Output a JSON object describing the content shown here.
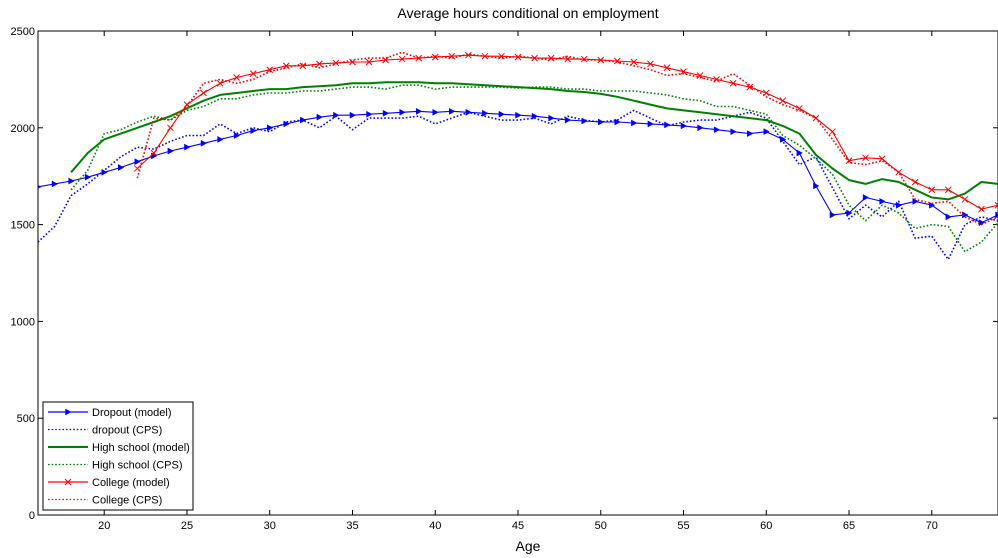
{
  "chart_data": {
    "type": "line",
    "title": "Average hours conditional on employment",
    "xlabel": "Age",
    "ylabel": "",
    "xlim": [
      16,
      74
    ],
    "ylim": [
      0,
      2500
    ],
    "xticks": [
      20,
      25,
      30,
      35,
      40,
      45,
      50,
      55,
      60,
      65,
      70
    ],
    "yticks": [
      0,
      500,
      1000,
      1500,
      2000,
      2500
    ],
    "grid": false,
    "legend_position": "bottom-left",
    "series": [
      {
        "name": "Dropout (model)",
        "color": "#0000ff",
        "style": "solid",
        "marker": "triangle-right",
        "x": [
          16,
          17,
          18,
          19,
          20,
          21,
          22,
          23,
          24,
          25,
          26,
          27,
          28,
          29,
          30,
          31,
          32,
          33,
          34,
          35,
          36,
          37,
          38,
          39,
          40,
          41,
          42,
          43,
          44,
          45,
          46,
          47,
          48,
          49,
          50,
          51,
          52,
          53,
          54,
          55,
          56,
          57,
          58,
          59,
          60,
          61,
          62,
          63,
          64,
          65,
          66,
          67,
          68,
          69,
          70,
          71,
          72,
          73,
          74
        ],
        "y": [
          1695,
          1710,
          1725,
          1745,
          1770,
          1795,
          1825,
          1855,
          1880,
          1900,
          1920,
          1940,
          1960,
          1985,
          2000,
          2020,
          2040,
          2055,
          2065,
          2065,
          2070,
          2075,
          2080,
          2085,
          2080,
          2085,
          2080,
          2075,
          2070,
          2065,
          2060,
          2050,
          2040,
          2035,
          2030,
          2030,
          2025,
          2020,
          2015,
          2010,
          2000,
          1990,
          1980,
          1970,
          1980,
          1940,
          1870,
          1700,
          1550,
          1560,
          1640,
          1620,
          1600,
          1620,
          1600,
          1540,
          1550,
          1510,
          1550
        ]
      },
      {
        "name": "dropout (CPS)",
        "color": "#0000ff",
        "style": "dotted",
        "marker": "none",
        "x": [
          16,
          17,
          18,
          19,
          20,
          21,
          22,
          23,
          24,
          25,
          26,
          27,
          28,
          29,
          30,
          31,
          32,
          33,
          34,
          35,
          36,
          37,
          38,
          39,
          40,
          41,
          42,
          43,
          44,
          45,
          46,
          47,
          48,
          49,
          50,
          51,
          52,
          53,
          54,
          55,
          56,
          57,
          58,
          59,
          60,
          61,
          62,
          63,
          64,
          65,
          66,
          67,
          68,
          69,
          70,
          71,
          72,
          73,
          74
        ],
        "y": [
          1410,
          1490,
          1650,
          1710,
          1780,
          1850,
          1900,
          1890,
          1930,
          1960,
          1960,
          2020,
          1970,
          2000,
          1980,
          2030,
          2040,
          2000,
          2060,
          1990,
          2050,
          2050,
          2050,
          2060,
          2020,
          2050,
          2080,
          2060,
          2040,
          2040,
          2050,
          2020,
          2060,
          2040,
          2030,
          2040,
          2090,
          2050,
          2010,
          2030,
          2040,
          2040,
          2060,
          2080,
          2050,
          1930,
          1810,
          1850,
          1690,
          1530,
          1600,
          1540,
          1620,
          1430,
          1440,
          1320,
          1500,
          1540,
          1520
        ]
      },
      {
        "name": "High school (model)",
        "color": "#008000",
        "style": "solid",
        "marker": "none",
        "x": [
          18,
          19,
          20,
          21,
          22,
          23,
          24,
          25,
          26,
          27,
          28,
          29,
          30,
          31,
          32,
          33,
          34,
          35,
          36,
          37,
          38,
          39,
          40,
          41,
          42,
          43,
          44,
          45,
          46,
          47,
          48,
          49,
          50,
          51,
          52,
          53,
          54,
          55,
          56,
          57,
          58,
          59,
          60,
          61,
          62,
          63,
          64,
          65,
          66,
          67,
          68,
          69,
          70,
          71,
          72,
          73,
          74
        ],
        "y": [
          1770,
          1870,
          1940,
          1970,
          2000,
          2030,
          2060,
          2100,
          2140,
          2170,
          2180,
          2190,
          2200,
          2200,
          2210,
          2215,
          2220,
          2230,
          2230,
          2235,
          2235,
          2235,
          2230,
          2230,
          2225,
          2220,
          2215,
          2210,
          2205,
          2200,
          2190,
          2185,
          2175,
          2160,
          2140,
          2120,
          2100,
          2090,
          2080,
          2070,
          2060,
          2050,
          2040,
          2010,
          1970,
          1860,
          1790,
          1730,
          1710,
          1735,
          1720,
          1680,
          1640,
          1630,
          1660,
          1720,
          1710
        ]
      },
      {
        "name": "High school (CPS)",
        "color": "#008000",
        "style": "dotted",
        "marker": "none",
        "x": [
          18,
          19,
          20,
          21,
          22,
          23,
          24,
          25,
          26,
          27,
          28,
          29,
          30,
          31,
          32,
          33,
          34,
          35,
          36,
          37,
          38,
          39,
          40,
          41,
          42,
          43,
          44,
          45,
          46,
          47,
          48,
          49,
          50,
          51,
          52,
          53,
          54,
          55,
          56,
          57,
          58,
          59,
          60,
          61,
          62,
          63,
          64,
          65,
          66,
          67,
          68,
          69,
          70,
          71,
          72,
          73,
          74
        ],
        "y": [
          1680,
          1780,
          1970,
          1990,
          2030,
          2060,
          2040,
          2090,
          2110,
          2150,
          2150,
          2170,
          2180,
          2180,
          2190,
          2190,
          2200,
          2210,
          2210,
          2200,
          2220,
          2220,
          2200,
          2210,
          2210,
          2210,
          2210,
          2205,
          2210,
          2210,
          2200,
          2200,
          2190,
          2190,
          2190,
          2180,
          2170,
          2150,
          2140,
          2110,
          2110,
          2090,
          2070,
          1960,
          1910,
          1840,
          1760,
          1600,
          1520,
          1600,
          1560,
          1480,
          1500,
          1490,
          1360,
          1410,
          1510
        ]
      },
      {
        "name": "College (model)",
        "color": "#ff0000",
        "style": "solid",
        "marker": "x",
        "x": [
          22,
          23,
          24,
          25,
          26,
          27,
          28,
          29,
          30,
          31,
          32,
          33,
          34,
          35,
          36,
          37,
          38,
          39,
          40,
          41,
          42,
          43,
          44,
          45,
          46,
          47,
          48,
          49,
          50,
          51,
          52,
          53,
          54,
          55,
          56,
          57,
          58,
          59,
          60,
          61,
          62,
          63,
          64,
          65,
          66,
          67,
          68,
          69,
          70,
          71,
          72,
          73,
          74
        ],
        "y": [
          1790,
          1870,
          2000,
          2120,
          2180,
          2230,
          2260,
          2280,
          2300,
          2320,
          2320,
          2330,
          2335,
          2340,
          2340,
          2350,
          2355,
          2360,
          2365,
          2370,
          2375,
          2370,
          2370,
          2365,
          2360,
          2360,
          2355,
          2355,
          2350,
          2345,
          2340,
          2330,
          2310,
          2290,
          2270,
          2250,
          2230,
          2210,
          2180,
          2140,
          2100,
          2050,
          1980,
          1830,
          1845,
          1840,
          1770,
          1720,
          1680,
          1680,
          1630,
          1580,
          1600
        ]
      },
      {
        "name": "College (CPS)",
        "color": "#ff0000",
        "style": "dotted",
        "marker": "none",
        "x": [
          22,
          23,
          24,
          25,
          26,
          27,
          28,
          29,
          30,
          31,
          32,
          33,
          34,
          35,
          36,
          37,
          38,
          39,
          40,
          41,
          42,
          43,
          44,
          45,
          46,
          47,
          48,
          49,
          50,
          51,
          52,
          53,
          54,
          55,
          56,
          57,
          58,
          59,
          60,
          61,
          62,
          63,
          64,
          65,
          66,
          67,
          68,
          69,
          70,
          71,
          72,
          73,
          74
        ],
        "y": [
          1740,
          2050,
          2040,
          2110,
          2230,
          2250,
          2230,
          2250,
          2290,
          2310,
          2330,
          2310,
          2330,
          2350,
          2360,
          2360,
          2390,
          2360,
          2370,
          2360,
          2380,
          2370,
          2360,
          2370,
          2360,
          2350,
          2370,
          2350,
          2350,
          2340,
          2320,
          2300,
          2270,
          2280,
          2260,
          2240,
          2280,
          2220,
          2160,
          2120,
          2090,
          2050,
          1940,
          1820,
          1810,
          1830,
          1770,
          1630,
          1610,
          1620,
          1540,
          1500,
          1540
        ]
      }
    ]
  }
}
